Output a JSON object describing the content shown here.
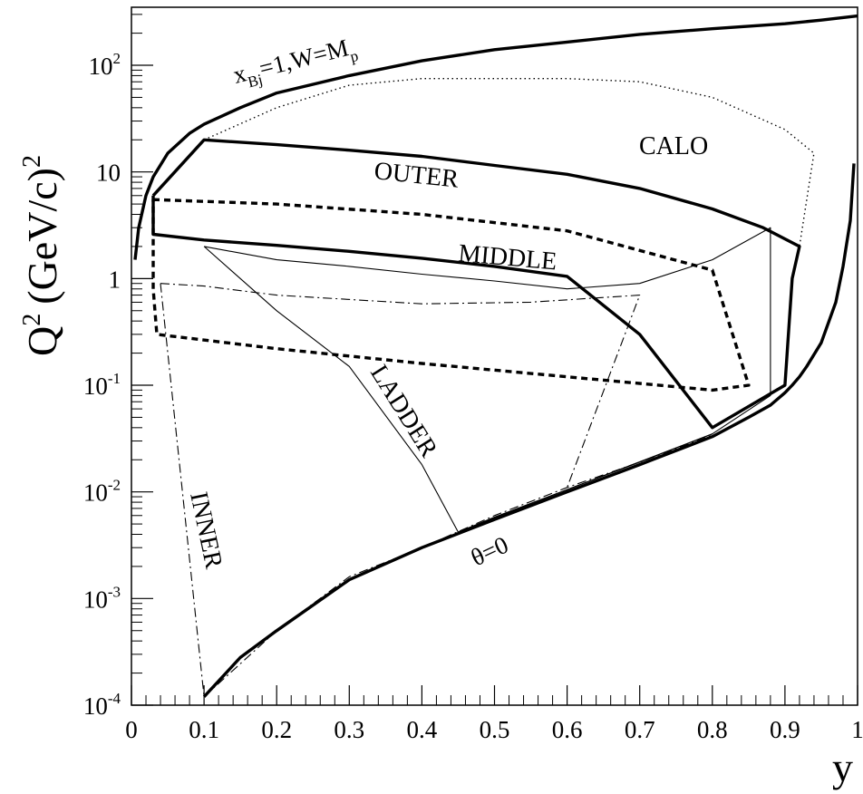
{
  "chart_data": {
    "type": "line",
    "title": "",
    "xlabel": "y",
    "ylabel": {
      "base": "Q",
      "sup1": "2",
      "unit": "(GeV/c)",
      "sup2": "2"
    },
    "xlim": [
      0,
      1
    ],
    "ylim": [
      0.0001,
      350
    ],
    "yscale": "log",
    "grid": false,
    "x_ticks": [
      {
        "value": 0,
        "label": "0"
      },
      {
        "value": 0.1,
        "label": "0.1"
      },
      {
        "value": 0.2,
        "label": "0.2"
      },
      {
        "value": 0.3,
        "label": "0.3"
      },
      {
        "value": 0.4,
        "label": "0.4"
      },
      {
        "value": 0.5,
        "label": "0.5"
      },
      {
        "value": 0.6,
        "label": "0.6"
      },
      {
        "value": 0.7,
        "label": "0.7"
      },
      {
        "value": 0.8,
        "label": "0.8"
      },
      {
        "value": 0.9,
        "label": "0.9"
      },
      {
        "value": 1,
        "label": "1"
      }
    ],
    "y_ticks": [
      {
        "value": 0.0001,
        "base": "10",
        "exp": "-4"
      },
      {
        "value": 0.001,
        "base": "10",
        "exp": "-3"
      },
      {
        "value": 0.01,
        "base": "10",
        "exp": "-2"
      },
      {
        "value": 0.1,
        "base": "10",
        "exp": "-1"
      },
      {
        "value": 1,
        "base": "1",
        "exp": ""
      },
      {
        "value": 10,
        "base": "10",
        "exp": ""
      },
      {
        "value": 100,
        "base": "10",
        "exp": "2"
      }
    ],
    "series": [
      {
        "style": "thick-solid",
        "x": [
          0.005,
          0.01,
          0.02,
          0.03,
          0.05,
          0.08,
          0.1,
          0.15,
          0.2,
          0.3,
          0.4,
          0.5,
          0.6,
          0.7,
          0.8,
          0.9,
          0.95,
          1.0
        ],
        "y": [
          1.5,
          3,
          6,
          9,
          15,
          23,
          28,
          40,
          55,
          80,
          110,
          140,
          165,
          195,
          220,
          245,
          265,
          290
        ]
      },
      {
        "style": "thick-solid",
        "x": [
          0.1,
          0.15,
          0.2,
          0.3,
          0.4,
          0.5,
          0.6,
          0.7,
          0.8,
          0.85,
          0.88,
          0.9,
          0.91,
          0.92,
          0.93,
          0.95,
          0.97,
          0.98,
          0.99,
          0.995
        ],
        "y": [
          0.00012,
          0.00028,
          0.0005,
          0.0015,
          0.003,
          0.0055,
          0.01,
          0.018,
          0.033,
          0.05,
          0.065,
          0.085,
          0.1,
          0.12,
          0.15,
          0.25,
          0.6,
          1.3,
          3.5,
          12
        ]
      },
      {
        "style": "dashdot",
        "x": [
          0.1,
          0.2,
          0.3,
          0.4,
          0.5,
          0.6,
          0.7,
          0.8
        ],
        "y": [
          0.00012,
          0.0005,
          0.0016,
          0.003,
          0.006,
          0.011,
          0.019,
          0.034
        ]
      },
      {
        "style": "thin-solid",
        "x": [
          0.45,
          0.5,
          0.6,
          0.7,
          0.8
        ],
        "y": [
          0.0042,
          0.0058,
          0.0105,
          0.019,
          0.035
        ]
      },
      {
        "name": "CALO",
        "style": "dotted",
        "x": [
          0.1,
          0.2,
          0.3,
          0.4,
          0.5,
          0.6,
          0.7,
          0.8,
          0.9,
          0.94,
          0.92
        ],
        "y": [
          20,
          40,
          65,
          75,
          75,
          75,
          70,
          50,
          25,
          15,
          2
        ]
      },
      {
        "name": "OUTER",
        "style": "thick-solid",
        "x": [
          0.03,
          0.1,
          0.2,
          0.3,
          0.4,
          0.5,
          0.6,
          0.7,
          0.8,
          0.87,
          0.92,
          0.91,
          0.9,
          0.8,
          0.7,
          0.6,
          0.5,
          0.4,
          0.3,
          0.2,
          0.1,
          0.03,
          0.03
        ],
        "y": [
          6,
          20,
          18,
          16,
          14,
          11.5,
          9.5,
          7,
          4.5,
          3,
          2,
          1,
          0.1,
          0.04,
          0.3,
          1.05,
          1.3,
          1.55,
          1.8,
          2.05,
          2.3,
          2.6,
          6
        ]
      },
      {
        "name": "MIDDLE",
        "style": "thick-dashed",
        "x": [
          0.03,
          0.2,
          0.4,
          0.6,
          0.8,
          0.85,
          0.8,
          0.6,
          0.4,
          0.2,
          0.035,
          0.03,
          0.03
        ],
        "y": [
          5.5,
          5,
          4,
          2.8,
          1.2,
          0.1,
          0.09,
          0.12,
          0.16,
          0.22,
          0.3,
          0.8,
          5.5
        ]
      },
      {
        "name": "LADDER",
        "style": "thin-solid",
        "x": [
          0.1,
          0.2,
          0.3,
          0.4,
          0.45,
          0.6,
          0.8,
          0.88,
          0.88,
          0.8,
          0.7,
          0.6,
          0.5,
          0.4,
          0.3,
          0.2,
          0.1
        ],
        "y": [
          2,
          0.5,
          0.15,
          0.018,
          0.0042,
          0.0105,
          0.035,
          0.08,
          3,
          1.5,
          0.9,
          0.8,
          0.95,
          1.1,
          1.3,
          1.5,
          2
        ]
      },
      {
        "name": "INNER",
        "style": "dashdot",
        "x": [
          0.04,
          0.1,
          0.2,
          0.4,
          0.55,
          0.7,
          0.6
        ],
        "y": [
          0.9,
          0.85,
          0.7,
          0.58,
          0.6,
          0.7,
          0.011
        ]
      },
      {
        "style": "dashdot",
        "x": [
          0.04,
          0.1
        ],
        "y": [
          0.9,
          0.00012
        ]
      }
    ],
    "annotations": [
      {
        "name": "kinematic-limit-label",
        "text": "x",
        "sub": "Bj",
        "text2": "=1,W=M",
        "sub2": "p"
      },
      {
        "name": "calo-label",
        "text": "CALO"
      },
      {
        "name": "outer-label",
        "text": "OUTER"
      },
      {
        "name": "middle-label",
        "text": "MIDDLE"
      },
      {
        "name": "ladder-label",
        "text": "LADDER"
      },
      {
        "name": "inner-label",
        "text": "INNER"
      },
      {
        "name": "theta-label",
        "text": "θ=0"
      }
    ]
  }
}
